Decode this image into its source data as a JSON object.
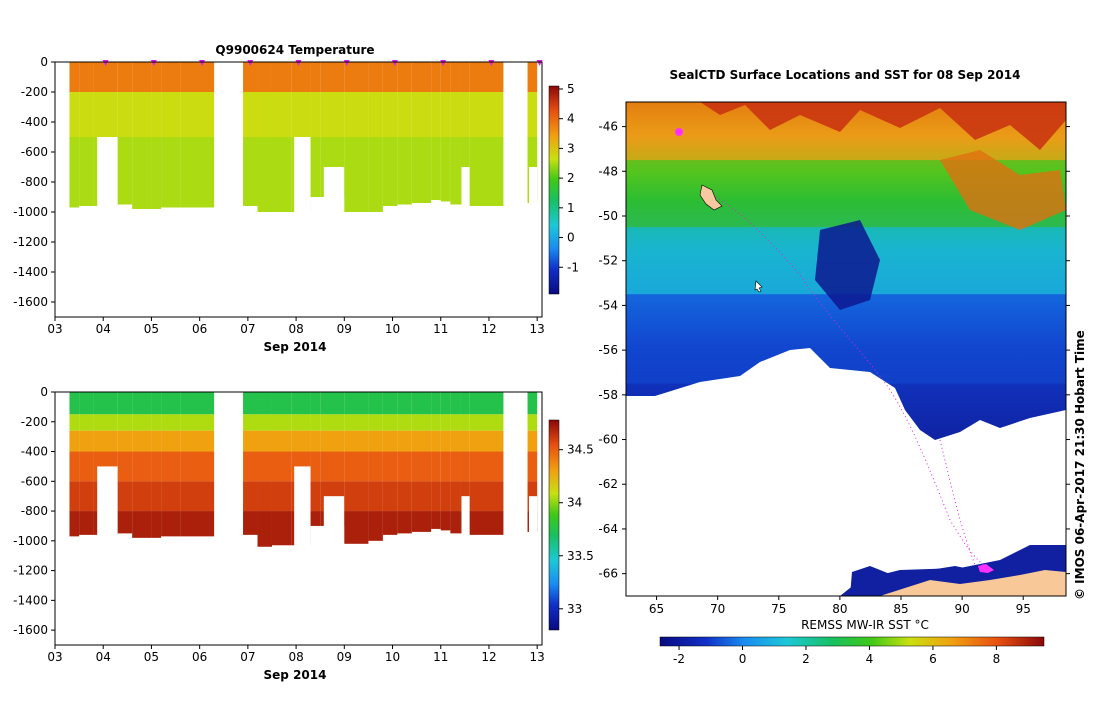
{
  "chart_data": [
    {
      "type": "heatmap",
      "name": "temperature-section",
      "title": "Q9900624  Temperature",
      "xlabel": "Sep 2014",
      "ylabel": "",
      "x_ticks": [
        "03",
        "04",
        "05",
        "06",
        "07",
        "08",
        "09",
        "10",
        "11",
        "12",
        "13"
      ],
      "x_range": [
        3.0,
        13.1
      ],
      "y_ticks": [
        0,
        -200,
        -400,
        -600,
        -800,
        -1000,
        -1200,
        -1400,
        -1600
      ],
      "ylim": [
        -1700,
        0
      ],
      "colorbar": {
        "ticks": [
          5,
          4,
          3,
          2,
          1,
          0,
          -1
        ],
        "range": [
          -1.9,
          5.1
        ]
      },
      "layers": [
        {
          "bottom": -200,
          "value": 3.8
        },
        {
          "bottom": -500,
          "value": 2.7
        },
        {
          "bottom": -1000,
          "value": 2.5
        }
      ],
      "profiles": [
        {
          "x": 3.3,
          "x2": 3.5,
          "bottom": -970
        },
        {
          "x": 3.5,
          "x2": 3.8,
          "bottom": -960
        },
        {
          "x": 3.8,
          "x2": 4.3,
          "bottom": -960,
          "gap_from": -500
        },
        {
          "x": 4.3,
          "x2": 4.6,
          "bottom": -950
        },
        {
          "x": 4.6,
          "x2": 5.0,
          "bottom": -980
        },
        {
          "x": 5.0,
          "x2": 5.2,
          "bottom": -980
        },
        {
          "x": 5.2,
          "x2": 5.6,
          "bottom": -970
        },
        {
          "x": 5.6,
          "x2": 6.3,
          "bottom": -970
        },
        {
          "x": 6.9,
          "x2": 7.2,
          "bottom": -960
        },
        {
          "x": 7.2,
          "x2": 7.5,
          "bottom": -1040
        },
        {
          "x": 7.5,
          "x2": 7.9,
          "bottom": -1030
        },
        {
          "x": 7.9,
          "x2": 8.3,
          "bottom": -1030,
          "gap_from": -500
        },
        {
          "x": 8.3,
          "x2": 8.5,
          "bottom": -900
        },
        {
          "x": 8.5,
          "x2": 9.0,
          "bottom": -900,
          "gap_from": -700
        },
        {
          "x": 9.0,
          "x2": 9.5,
          "bottom": -1020
        },
        {
          "x": 9.5,
          "x2": 9.8,
          "bottom": -1000
        },
        {
          "x": 9.8,
          "x2": 10.1,
          "bottom": -960
        },
        {
          "x": 10.1,
          "x2": 10.4,
          "bottom": -950
        },
        {
          "x": 10.4,
          "x2": 10.8,
          "bottom": -940
        },
        {
          "x": 10.8,
          "x2": 11.0,
          "bottom": -920
        },
        {
          "x": 11.0,
          "x2": 11.2,
          "bottom": -930
        },
        {
          "x": 11.2,
          "x2": 11.4,
          "bottom": -950
        },
        {
          "x": 11.4,
          "x2": 11.6,
          "bottom": -950,
          "gap_from": -700
        },
        {
          "x": 11.6,
          "x2": 12.3,
          "bottom": -960
        },
        {
          "x": 12.8,
          "x2": 13.0,
          "bottom": -940,
          "gap_from": -700
        }
      ],
      "markers": [
        4.05,
        5.05,
        6.05,
        7.05,
        8.05,
        9.05,
        10.05,
        11.05,
        12.05,
        13.05
      ]
    },
    {
      "type": "heatmap",
      "name": "salinity-section",
      "title": "",
      "xlabel": "Sep 2014",
      "ylabel": "",
      "x_ticks": [
        "03",
        "04",
        "05",
        "06",
        "07",
        "08",
        "09",
        "10",
        "11",
        "12",
        "13"
      ],
      "x_range": [
        3.0,
        13.1
      ],
      "y_ticks": [
        0,
        -200,
        -400,
        -600,
        -800,
        -1000,
        -1200,
        -1400,
        -1600
      ],
      "ylim": [
        -1700,
        0
      ],
      "colorbar": {
        "ticks": [
          "34.5",
          "34",
          "33.5",
          "33"
        ],
        "range": [
          32.8,
          34.78
        ]
      },
      "layers": [
        {
          "bottom": -150,
          "value": 33.75
        },
        {
          "bottom": -260,
          "value": 34.05
        },
        {
          "bottom": -400,
          "value": 34.3
        },
        {
          "bottom": -600,
          "value": 34.5
        },
        {
          "bottom": -800,
          "value": 34.6
        },
        {
          "bottom": -1100,
          "value": 34.7
        }
      ]
    },
    {
      "type": "heatmap",
      "name": "sst-map",
      "title": "SealCTD Surface Locations and SST for 08 Sep 2014",
      "xlabel": "REMSS MW-IR SST °C",
      "x_ticks": [
        "65",
        "70",
        "75",
        "80",
        "85",
        "90",
        "95"
      ],
      "xlim": [
        62.5,
        98.5
      ],
      "y_ticks": [
        "-46",
        "-48",
        "-50",
        "-52",
        "-54",
        "-56",
        "-58",
        "-60",
        "-62",
        "-64",
        "-66"
      ],
      "ylim": [
        -67.0,
        -44.9
      ],
      "colorbar": {
        "ticks": [
          "-2",
          "0",
          "2",
          "4",
          "6",
          "8"
        ],
        "range": [
          -2.6,
          9.5
        ]
      },
      "sst_bands": [
        {
          "lat_top": -44.9,
          "lat_bottom": -47.5,
          "value": 6.5
        },
        {
          "lat_top": -47.5,
          "lat_bottom": -50.5,
          "value": 4.0
        },
        {
          "lat_top": -50.5,
          "lat_bottom": -53.5,
          "value": 1.5
        },
        {
          "lat_top": -53.5,
          "lat_bottom": -57.5,
          "value": -0.8
        }
      ]
    }
  ],
  "credit": "©  IMOS 06-Apr-2017 21:30 Hobart Time"
}
